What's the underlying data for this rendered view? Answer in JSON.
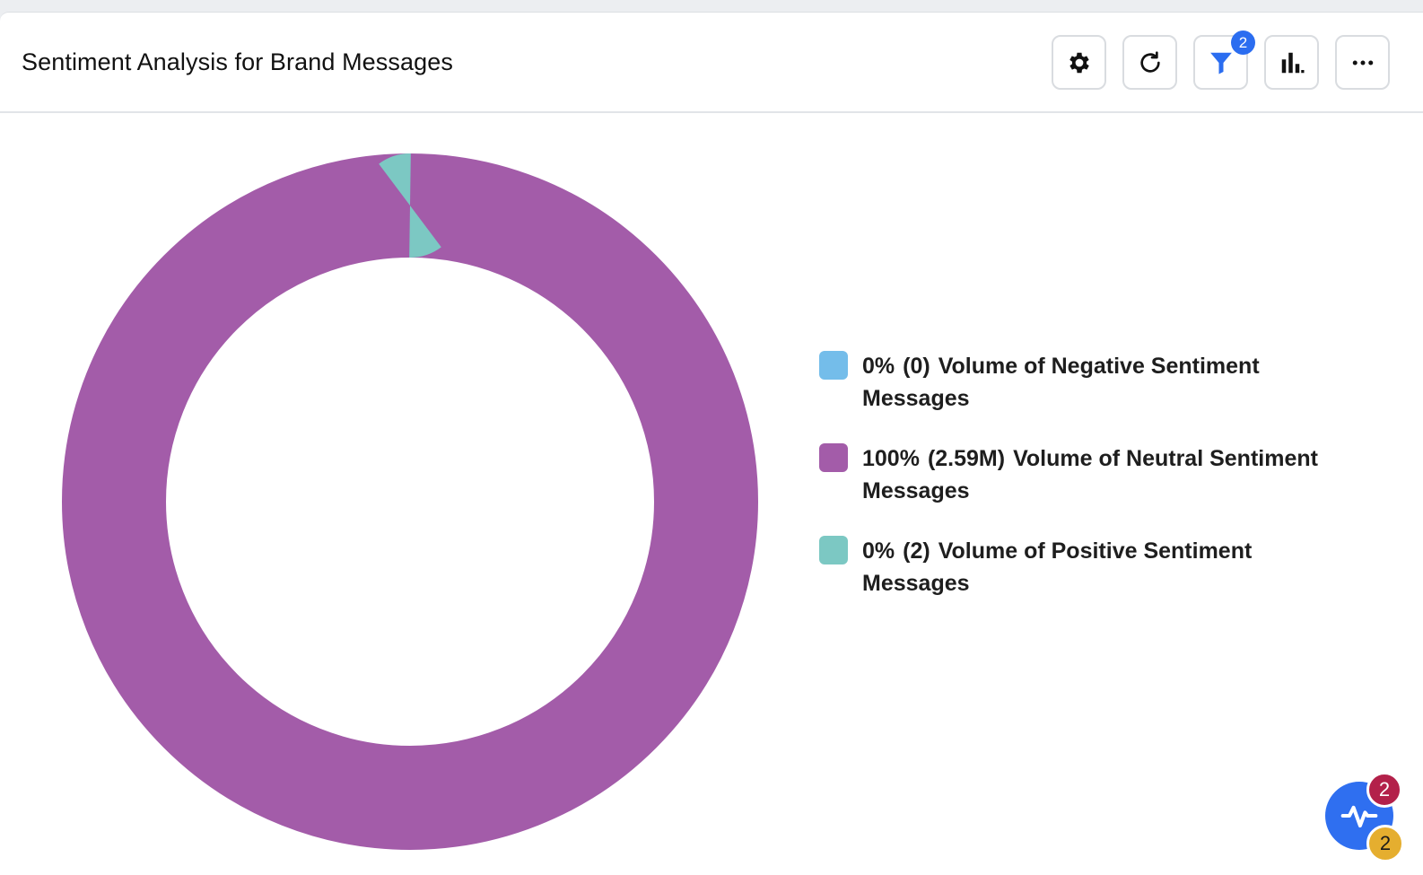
{
  "widget": {
    "title": "Sentiment Analysis for Brand Messages"
  },
  "toolbar": {
    "buttons": [
      {
        "icon": "gear-icon",
        "name": "settings"
      },
      {
        "icon": "refresh-icon",
        "name": "refresh"
      },
      {
        "icon": "filter-icon",
        "name": "filter"
      },
      {
        "icon": "bar-chart-icon",
        "name": "chart-type"
      },
      {
        "icon": "more-icon",
        "name": "more-options"
      }
    ],
    "filter_badge": "2",
    "accent_color": "#2b6df0"
  },
  "chart_data": {
    "type": "pie",
    "style": "donut",
    "title": "",
    "legend_position": "right",
    "series": [
      {
        "name": "Volume of Negative Sentiment Messages",
        "percent_label": "0%",
        "count_label": "(0)",
        "value": 0,
        "color": "#74bdea"
      },
      {
        "name": "Volume of Neutral Sentiment Messages",
        "percent_label": "100%",
        "count_label": "(2.59M)",
        "value": 2590000,
        "color": "#a35ca9"
      },
      {
        "name": "Volume of Positive Sentiment Messages",
        "percent_label": "0%",
        "count_label": "(2)",
        "value": 2,
        "color": "#7cc8c3"
      }
    ]
  },
  "assistant": {
    "icon": "activity-icon",
    "badge_top": "2",
    "badge_bottom": "2",
    "badge_top_color": "#b3214a",
    "badge_bottom_color": "#e5ae2f"
  }
}
